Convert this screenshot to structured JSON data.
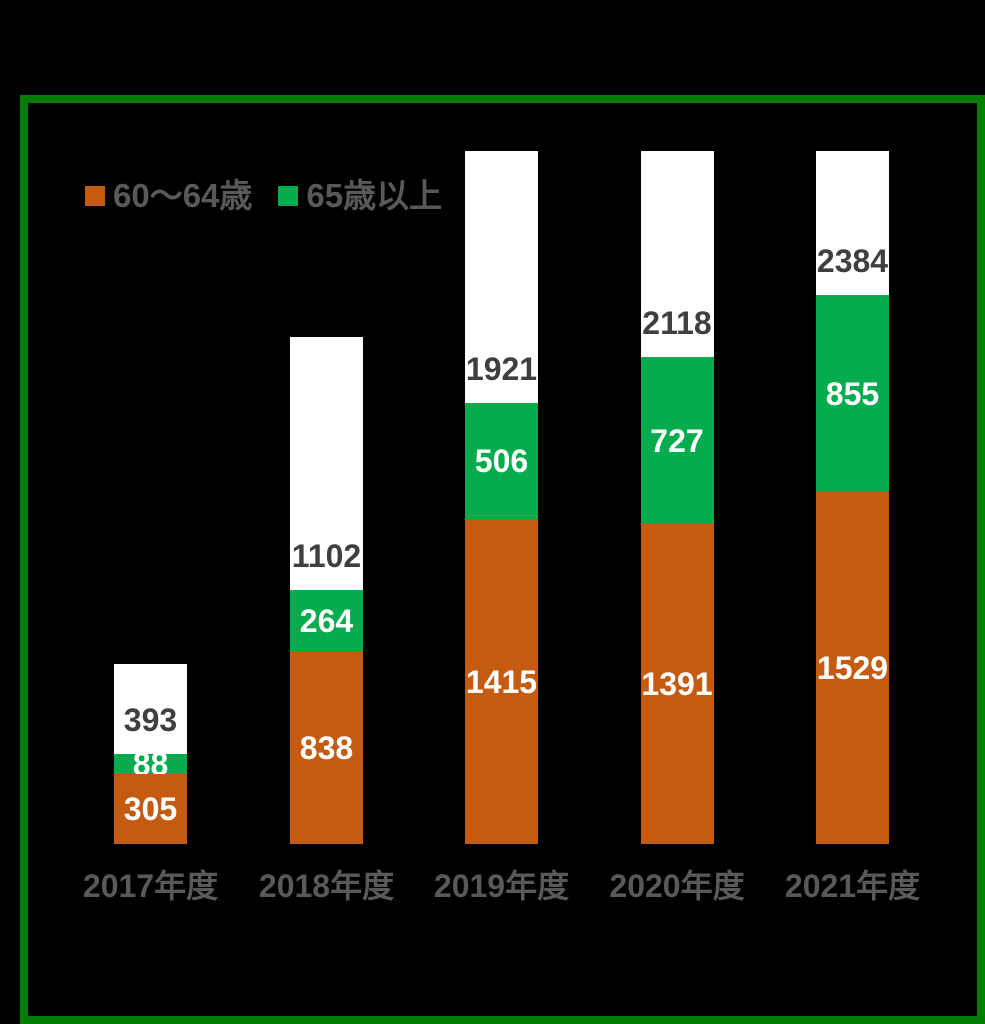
{
  "colors": {
    "background": "#000000",
    "frame_border": "#047d04",
    "plot_background": "#000000",
    "total_bar_fill": "#ffffff",
    "total_label_text": "#3f3f3f",
    "segment_label_text": "#ffffff",
    "axis_and_legend_text": "#595959",
    "series_orange": "#c45b10",
    "series_green": "#05ac4e"
  },
  "chart_data": {
    "type": "bar",
    "stacked": true,
    "title": "",
    "xlabel": "",
    "ylabel": "",
    "categories": [
      "2017年度",
      "2018年度",
      "2019年度",
      "2020年度",
      "2021年度"
    ],
    "series": [
      {
        "name": "60～64歳",
        "color": "#c45b10",
        "values": [
          305,
          838,
          1415,
          1391,
          1529
        ]
      },
      {
        "name": "65歳以上",
        "color": "#05ac4e",
        "values": [
          88,
          264,
          506,
          727,
          855
        ]
      }
    ],
    "totals": [
      393,
      1102,
      1921,
      2118,
      2384
    ],
    "totals_bar_color": "#ffffff",
    "legend_position": "top-left",
    "grid": false,
    "axes_visible": false,
    "ylim": [
      0,
      3013
    ],
    "notes_layout": "total shown as white bar segment stacked above the two series, clipped at plot top for 2019-2021"
  }
}
